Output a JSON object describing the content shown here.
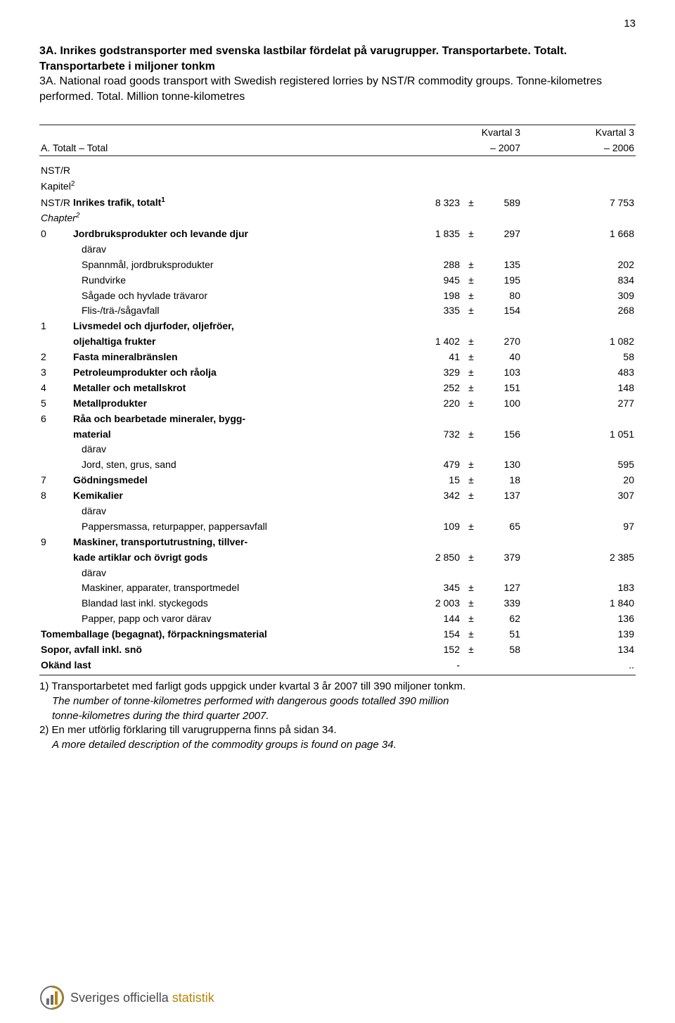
{
  "page_number": "13",
  "titles": {
    "sv": "3A. Inrikes godstransporter med svenska lastbilar fördelat på varugrupper. Transportarbete. Totalt. Transportarbete i miljoner tonkm",
    "en": "3A. National road goods transport with Swedish registered lorries by NST/R commodity groups. Tonne-kilometres performed. Total. Million tonne-kilometres"
  },
  "column_headers": {
    "total_row_label": "A. Totalt – Total",
    "q_label": "Kvartal 3",
    "year_cur": "– 2007",
    "year_prev": "– 2006"
  },
  "preamble": {
    "nstr": "NST/R",
    "kapitel": "Kapitel",
    "kapitel_sup": "2",
    "nstr2": "NST/R",
    "chapter": "Chapter",
    "chapter_sup": "2"
  },
  "rows": [
    {
      "code": "",
      "label": "Inrikes trafik, totalt",
      "sup": "1",
      "bold": true,
      "val": "8 323",
      "pm": "±",
      "err": "589",
      "prev": "7 753"
    },
    {
      "code": "0",
      "label": "Jordbruksprodukter och levande djur",
      "bold": true,
      "val": "1 835",
      "pm": "±",
      "err": "297",
      "prev": "1 668"
    },
    {
      "code": "",
      "label": "därav",
      "indent": true
    },
    {
      "code": "",
      "label": "Spannmål, jordbruksprodukter",
      "indent": true,
      "val": "288",
      "pm": "±",
      "err": "135",
      "prev": "202"
    },
    {
      "code": "",
      "label": "Rundvirke",
      "indent": true,
      "val": "945",
      "pm": "±",
      "err": "195",
      "prev": "834"
    },
    {
      "code": "",
      "label": "Sågade och hyvlade trävaror",
      "indent": true,
      "val": "198",
      "pm": "±",
      "err": "80",
      "prev": "309"
    },
    {
      "code": "",
      "label": "Flis-/trä-/sågavfall",
      "indent": true,
      "val": "335",
      "pm": "±",
      "err": "154",
      "prev": "268"
    },
    {
      "code": "1",
      "label": "Livsmedel och djurfoder, oljefröer,",
      "bold": true
    },
    {
      "code": "",
      "label": "oljehaltiga frukter",
      "bold": true,
      "val": "1 402",
      "pm": "±",
      "err": "270",
      "prev": "1 082"
    },
    {
      "code": "2",
      "label": "Fasta mineralbränslen",
      "bold": true,
      "val": "41",
      "pm": "±",
      "err": "40",
      "prev": "58"
    },
    {
      "code": "3",
      "label": "Petroleumprodukter och råolja",
      "bold": true,
      "val": "329",
      "pm": "±",
      "err": "103",
      "prev": "483"
    },
    {
      "code": "4",
      "label": "Metaller och metallskrot",
      "bold": true,
      "val": "252",
      "pm": "±",
      "err": "151",
      "prev": "148"
    },
    {
      "code": "5",
      "label": "Metallprodukter",
      "bold": true,
      "val": "220",
      "pm": "±",
      "err": "100",
      "prev": "277"
    },
    {
      "code": "6",
      "label": "Råa och bearbetade mineraler, bygg-",
      "bold": true
    },
    {
      "code": "",
      "label": "material",
      "bold": true,
      "val": "732",
      "pm": "±",
      "err": "156",
      "prev": "1 051"
    },
    {
      "code": "",
      "label": "därav",
      "indent": true
    },
    {
      "code": "",
      "label": "Jord, sten, grus, sand",
      "indent": true,
      "val": "479",
      "pm": "±",
      "err": "130",
      "prev": "595"
    },
    {
      "code": "7",
      "label": "Gödningsmedel",
      "bold": true,
      "val": "15",
      "pm": "±",
      "err": "18",
      "prev": "20"
    },
    {
      "code": "8",
      "label": "Kemikalier",
      "bold": true,
      "val": "342",
      "pm": "±",
      "err": "137",
      "prev": "307"
    },
    {
      "code": "",
      "label": "därav",
      "indent": true
    },
    {
      "code": "",
      "label": "Pappersmassa, returpapper, pappersavfall",
      "indent": true,
      "val": "109",
      "pm": "±",
      "err": "65",
      "prev": "97"
    },
    {
      "code": "9",
      "label": "Maskiner, transportutrustning, tillver-",
      "bold": true
    },
    {
      "code": "",
      "label": "kade artiklar och övrigt gods",
      "bold": true,
      "val": "2 850",
      "pm": "±",
      "err": "379",
      "prev": "2 385"
    },
    {
      "code": "",
      "label": "därav",
      "indent": true
    },
    {
      "code": "",
      "label": "Maskiner, apparater, transportmedel",
      "indent": true,
      "val": "345",
      "pm": "±",
      "err": "127",
      "prev": "183"
    },
    {
      "code": "",
      "label": "Blandad last inkl. styckegods",
      "indent": true,
      "val": "2 003",
      "pm": "±",
      "err": "339",
      "prev": "1 840"
    },
    {
      "code": "",
      "label": "Papper, papp och varor därav",
      "indent": true,
      "val": "144",
      "pm": "±",
      "err": "62",
      "prev": "136"
    },
    {
      "code": "",
      "span": true,
      "label": "Tomemballage (begagnat), förpackningsmaterial",
      "bold": true,
      "val": "154",
      "pm": "±",
      "err": "51",
      "prev": "139"
    },
    {
      "code": "",
      "span": true,
      "label": "Sopor, avfall inkl. snö",
      "bold": true,
      "val": "152",
      "pm": "±",
      "err": "58",
      "prev": "134"
    },
    {
      "code": "",
      "span": true,
      "label": "Okänd last",
      "bold": true,
      "val": "-",
      "prev": ".."
    }
  ],
  "footnotes": [
    {
      "text": "1) Transportarbetet med farligt gods uppgick under kvartal 3 år 2007 till 390 miljoner tonkm.",
      "roman": true
    },
    {
      "text": "The number of tonne-kilometres performed with dangerous goods totalled 390 million",
      "italic": true
    },
    {
      "text": "tonne-kilometres during the third quarter 2007.",
      "italic": true
    },
    {
      "text": "2) En mer utförlig förklaring till varugrupperna finns på sidan 34.",
      "roman": true
    },
    {
      "text": "A more detailed description of the commodity groups is found on page 34.",
      "italic": true
    }
  ],
  "footer": {
    "black": "Sveriges officiella ",
    "accent": "statistik"
  }
}
